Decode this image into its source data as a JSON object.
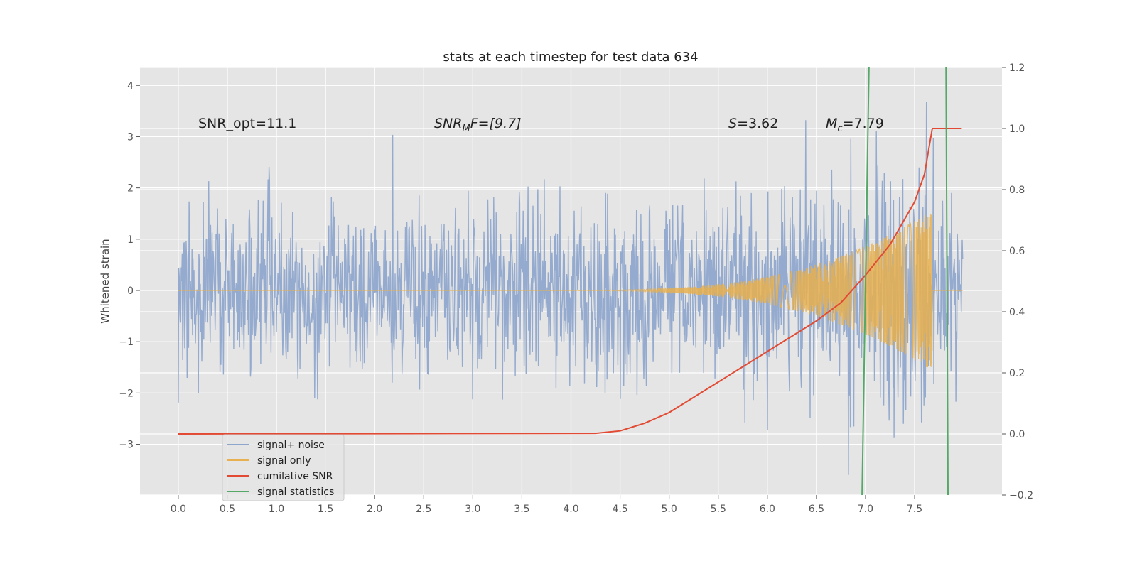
{
  "chart_data": {
    "type": "line",
    "title": "stats at each timestep for test data 634",
    "xlabel": "",
    "ylabel": "Whitened strain",
    "xlim": [
      -0.39,
      8.39
    ],
    "ylim": [
      -3.99,
      4.35
    ],
    "ylim_right": [
      -0.2,
      1.2
    ],
    "x_ticks": [
      "0.0",
      "0.5",
      "1.0",
      "1.5",
      "2.0",
      "2.5",
      "3.0",
      "3.5",
      "4.0",
      "4.5",
      "5.0",
      "5.5",
      "6.0",
      "6.5",
      "7.0",
      "7.5"
    ],
    "y_ticks": [
      "−3",
      "−2",
      "−1",
      "0",
      "1",
      "2",
      "3",
      "4"
    ],
    "y_ticks_right": [
      "−0.2",
      "0.0",
      "0.2",
      "0.4",
      "0.6",
      "0.8",
      "1.0",
      "1.2"
    ],
    "grid": true,
    "annotations": {
      "snr_opt": "SNR_opt=11.1",
      "snr_mf_base": "SNR",
      "snr_mf_sub": "M",
      "snr_mf_rest": "F=[9.7]",
      "s_var": "S",
      "s_val": "=3.62",
      "mc_var": "M",
      "mc_sub": "c",
      "mc_val": "=7.79"
    },
    "legend": {
      "placement": "lower-left",
      "entries": [
        "signal+ noise",
        "signal only",
        "cumilative SNR",
        "signal statistics"
      ]
    },
    "series": [
      {
        "name": "signal+ noise",
        "color": "#8fa6cc",
        "axis": "left",
        "x_range": [
          0,
          7.99
        ],
        "noise_std": 0.85,
        "samples": 1600
      },
      {
        "name": "signal only",
        "color": "#e8b04f",
        "axis": "left",
        "chirp_start": 4.3,
        "merger": 7.68,
        "peak_amplitude": 1.6
      },
      {
        "name": "cumilative SNR",
        "color": "#e24a33",
        "axis": "right",
        "x": [
          0,
          4.25,
          4.5,
          4.75,
          5.0,
          5.25,
          5.5,
          5.75,
          6.0,
          6.25,
          6.5,
          6.75,
          7.0,
          7.25,
          7.5,
          7.6,
          7.68,
          7.98
        ],
        "y": [
          0,
          0.002,
          0.01,
          0.035,
          0.07,
          0.12,
          0.17,
          0.22,
          0.27,
          0.32,
          0.37,
          0.43,
          0.52,
          0.62,
          0.76,
          0.85,
          1.0,
          1.0
        ]
      },
      {
        "name": "signal statistics",
        "color": "#55a868",
        "axis": "right",
        "lines": [
          {
            "x": [
              6.965,
              7.035
            ],
            "y": [
              -0.2,
              1.2
            ]
          },
          {
            "x": [
              7.82,
              7.84
            ],
            "y": [
              1.2,
              -0.2
            ]
          }
        ]
      }
    ]
  }
}
